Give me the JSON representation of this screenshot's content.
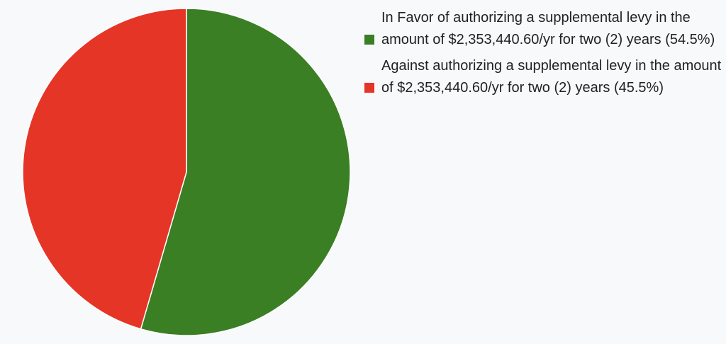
{
  "chart_data": {
    "type": "pie",
    "slices": [
      {
        "label": "In Favor of authorizing a supplemental levy in the amount of $2,353,440.60/yr for two (2) years (54.5%)",
        "value": 54.5,
        "color": "#3a7f24"
      },
      {
        "label": "Against authorizing a supplemental levy in the amount of $2,353,440.60/yr for two (2) years (45.5%)",
        "value": 45.5,
        "color": "#e53526"
      }
    ],
    "start_angle": "12 o'clock",
    "direction": "clockwise",
    "slice_border_color": "#ffffff",
    "legend": "right"
  }
}
